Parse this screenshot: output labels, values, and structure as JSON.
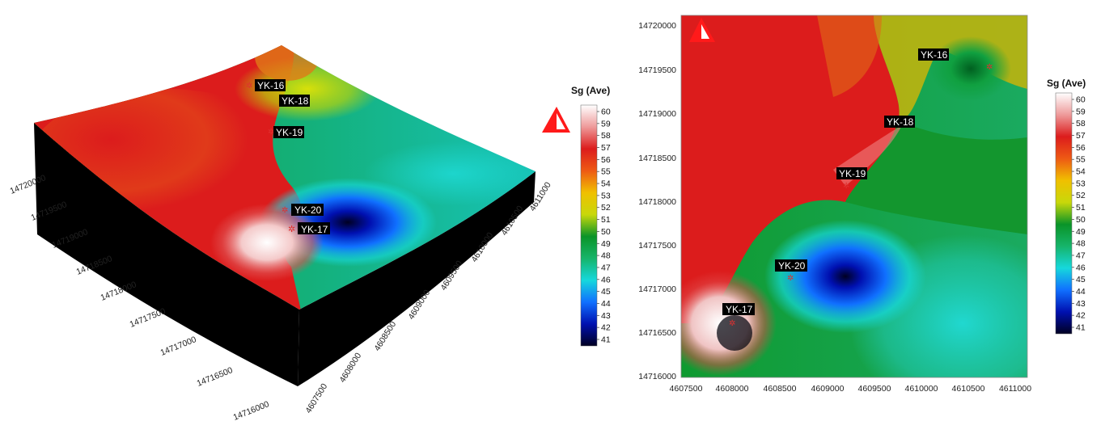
{
  "colors": {
    "colormap": [
      "#000022",
      "#0010b0",
      "#1070ff",
      "#16d8dc",
      "#16b46a",
      "#0a9428",
      "#c8d80a",
      "#f0c000",
      "#ee5a14",
      "#dc1c1c",
      "#ee9a9a",
      "#ffffff"
    ],
    "label_bg": "#000000",
    "label_text": "#ffffff",
    "north_arrow": "#ff1a1a",
    "well_marker": "#e03030"
  },
  "icons": {
    "north_arrow": "north-arrow-icon",
    "well": "well-marker-icon"
  },
  "left_map": {
    "x_ticks": [
      "4607500",
      "4608000",
      "4608500",
      "4609000",
      "4609500",
      "4610000",
      "4610500",
      "4611000"
    ],
    "y_ticks": [
      "14716000",
      "14716500",
      "14717000",
      "14717500",
      "14718000",
      "14718500",
      "14719000",
      "14719500",
      "14720000"
    ],
    "legend": {
      "title": "Sg (Ave)",
      "ticks": [
        "60",
        "59",
        "58",
        "57",
        "56",
        "55",
        "54",
        "53",
        "52",
        "51",
        "50",
        "49",
        "48",
        "47",
        "46",
        "45",
        "44",
        "43",
        "42",
        "41"
      ]
    },
    "wells": [
      {
        "name": "YK-16"
      },
      {
        "name": "YK-18"
      },
      {
        "name": "YK-19"
      },
      {
        "name": "YK-20"
      },
      {
        "name": "YK-17"
      }
    ]
  },
  "right_map": {
    "x_ticks": [
      "4607500",
      "4608000",
      "4608500",
      "4609000",
      "4609500",
      "4610000",
      "4610500",
      "4611000"
    ],
    "y_ticks": [
      "14720000",
      "14719500",
      "14719000",
      "14718500",
      "14718000",
      "14717500",
      "14717000",
      "14716500",
      "14716000"
    ],
    "legend": {
      "title": "Sg (Ave)",
      "ticks": [
        "60",
        "59",
        "58",
        "57",
        "56",
        "55",
        "54",
        "53",
        "52",
        "51",
        "50",
        "49",
        "48",
        "47",
        "46",
        "45",
        "44",
        "43",
        "42",
        "41"
      ]
    },
    "wells": [
      {
        "name": "YK-16"
      },
      {
        "name": "YK-18"
      },
      {
        "name": "YK-19"
      },
      {
        "name": "YK-20"
      },
      {
        "name": "YK-17"
      }
    ]
  }
}
